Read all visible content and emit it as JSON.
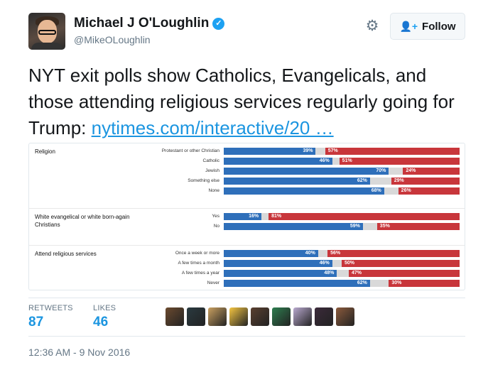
{
  "author": {
    "name": "Michael J O'Loughlin",
    "handle": "@MikeOLoughlin",
    "verified": true
  },
  "follow_button": {
    "label": "Follow",
    "icon": "add-user-icon"
  },
  "settings_icon": "gear-icon",
  "tweet": {
    "text": "NYT exit polls show Catholics, Evangelicals, and those attending religious services regularly going for Trump: ",
    "link": "nytimes.com/interactive/20 …"
  },
  "colors": {
    "clinton": "#2e6fba",
    "trump": "#c8363b",
    "other": "#d9d9d9",
    "link": "#1b95e0"
  },
  "chart_data": {
    "type": "bar",
    "stacked": true,
    "groups": [
      {
        "label": "Religion",
        "rows": [
          {
            "label": "Protestant or other Christian",
            "blue": 39,
            "red": 57,
            "blue_label": "39%",
            "red_label": "57%"
          },
          {
            "label": "Catholic",
            "blue": 46,
            "red": 51,
            "blue_label": "46%",
            "red_label": "51%"
          },
          {
            "label": "Jewish",
            "blue": 70,
            "red": 24,
            "blue_label": "70%",
            "red_label": "24%"
          },
          {
            "label": "Something else",
            "blue": 62,
            "red": 29,
            "blue_label": "62%",
            "red_label": "29%"
          },
          {
            "label": "None",
            "blue": 68,
            "red": 26,
            "blue_label": "68%",
            "red_label": "26%"
          }
        ]
      },
      {
        "label": "White evangelical or white born-again Christians",
        "rows": [
          {
            "label": "Yes",
            "blue": 16,
            "red": 81,
            "blue_label": "16%",
            "red_label": "81%"
          },
          {
            "label": "No",
            "blue": 59,
            "red": 35,
            "blue_label": "59%",
            "red_label": "35%"
          }
        ]
      },
      {
        "label": "Attend religious services",
        "rows": [
          {
            "label": "Once a week or more",
            "blue": 40,
            "red": 56,
            "blue_label": "40%",
            "red_label": "56%"
          },
          {
            "label": "A few times a month",
            "blue": 46,
            "red": 50,
            "blue_label": "46%",
            "red_label": "50%"
          },
          {
            "label": "A few times a year",
            "blue": 48,
            "red": 47,
            "blue_label": "48%",
            "red_label": "47%"
          },
          {
            "label": "Never",
            "blue": 62,
            "red": 30,
            "blue_label": "62%",
            "red_label": "30%"
          }
        ]
      }
    ]
  },
  "stats": {
    "retweets_label": "RETWEETS",
    "retweets": "87",
    "likes_label": "LIKES",
    "likes": "46"
  },
  "likers": [
    {
      "icon": "liker-avatar",
      "color": "#6b4a2f"
    },
    {
      "icon": "liker-avatar",
      "color": "#2a3a40"
    },
    {
      "icon": "liker-avatar",
      "color": "#c9a060"
    },
    {
      "icon": "liker-avatar",
      "color": "#f4c542"
    },
    {
      "icon": "liker-avatar",
      "color": "#5a4030"
    },
    {
      "icon": "liker-avatar",
      "color": "#2e7d4f"
    },
    {
      "icon": "liker-avatar",
      "color": "#b9a9cf"
    },
    {
      "icon": "liker-avatar",
      "color": "#3b2a3a"
    },
    {
      "icon": "liker-avatar",
      "color": "#8b5a3c"
    }
  ],
  "timestamp": "12:36 AM - 9 Nov 2016"
}
